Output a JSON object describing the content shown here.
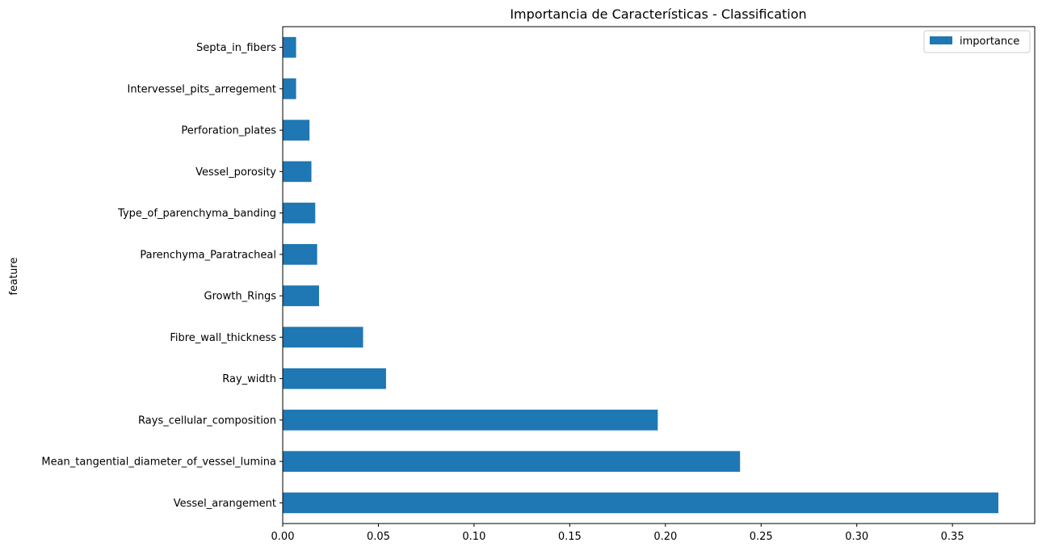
{
  "chart_data": {
    "type": "bar",
    "orientation": "horizontal",
    "title": "Importancia de Características - Classification",
    "xlabel": "",
    "ylabel": "feature",
    "xlim": [
      0,
      0.393
    ],
    "xticks": [
      "0.00",
      "0.05",
      "0.10",
      "0.15",
      "0.20",
      "0.25",
      "0.30",
      "0.35"
    ],
    "grid": false,
    "legend": {
      "placement": "top-right",
      "entries": [
        "importance"
      ]
    },
    "color": "#1f77b4",
    "categories": [
      "Vessel_arangement",
      "Mean_tangential_diameter_of_vessel_lumina",
      "Rays_cellular_composition",
      "Ray_width",
      "Fibre_wall_thickness",
      "Growth_Rings",
      "Parenchyma_Paratracheal",
      "Type_of_parenchyma_banding",
      "Vessel_porosity",
      "Perforation_plates",
      "Intervessel_pits_arregement",
      "Septa_in_fibers"
    ],
    "series": [
      {
        "name": "importance",
        "values": [
          0.374,
          0.239,
          0.196,
          0.054,
          0.042,
          0.019,
          0.018,
          0.017,
          0.015,
          0.014,
          0.007,
          0.007
        ]
      }
    ]
  }
}
